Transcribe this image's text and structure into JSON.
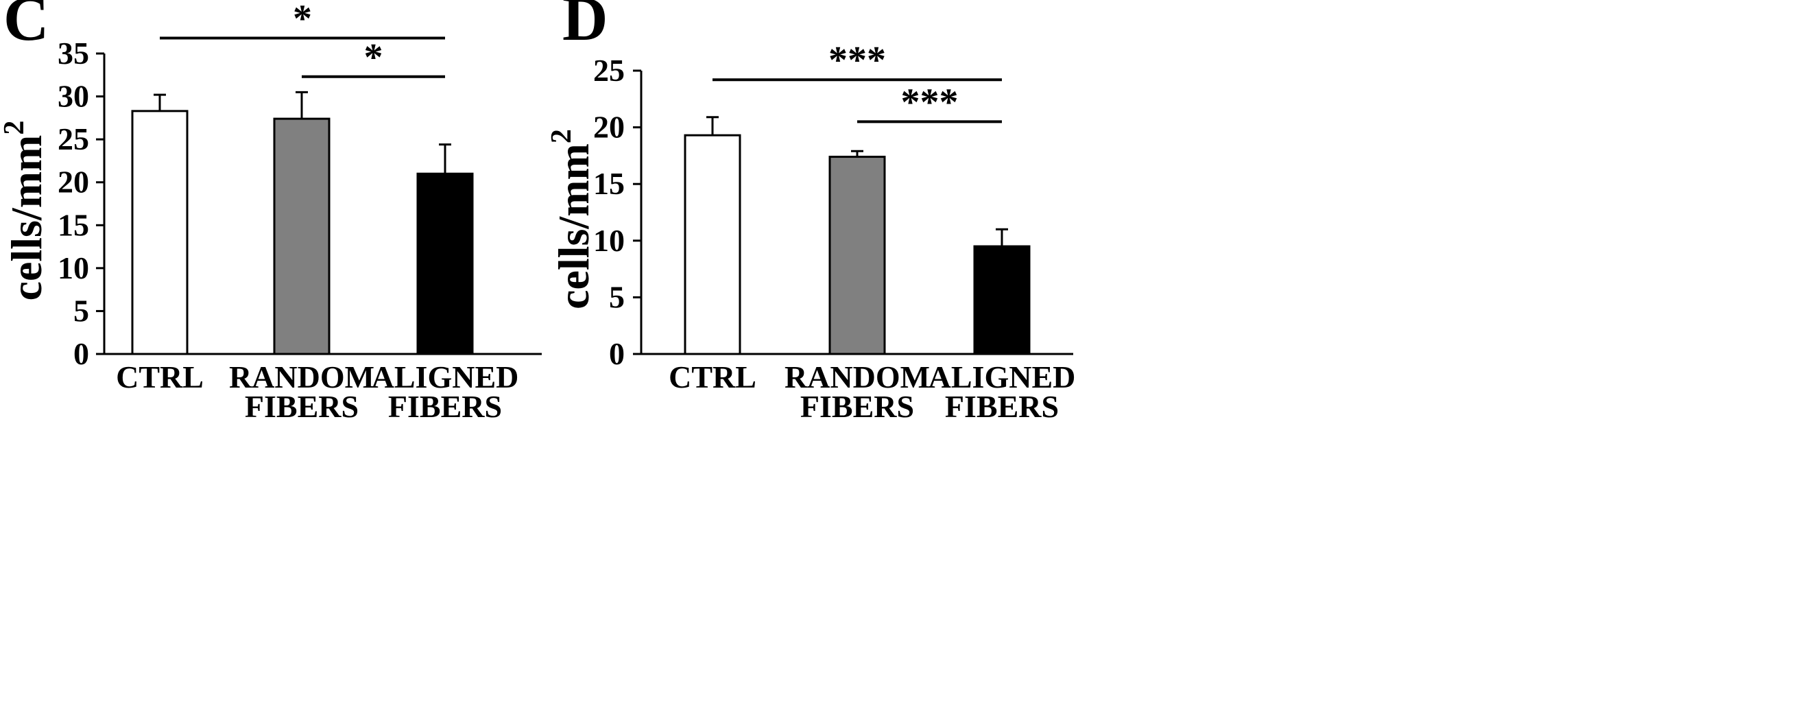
{
  "chart_data": [
    {
      "type": "bar",
      "panel_label": "C",
      "categories": [
        [
          "CTRL"
        ],
        [
          "RANDOM",
          "FIBERS"
        ],
        [
          "ALIGNED",
          "FIBERS"
        ]
      ],
      "values": [
        28.3,
        27.4,
        21.0
      ],
      "errors": [
        1.9,
        3.1,
        3.4
      ],
      "bar_colors": [
        "#ffffff",
        "#808080",
        "#000000"
      ],
      "ylabel": "cells/mm",
      "ylabel_sup": "2",
      "ylim": [
        0,
        35
      ],
      "yticks": [
        0,
        5,
        10,
        15,
        20,
        25,
        30,
        35
      ],
      "grid": false,
      "significance": [
        {
          "from": 0,
          "to": 2,
          "label": "*",
          "y": 36.8
        },
        {
          "from": 1,
          "to": 2,
          "label": "*",
          "y": 32.3
        }
      ]
    },
    {
      "type": "bar",
      "panel_label": "D",
      "categories": [
        [
          "CTRL"
        ],
        [
          "RANDOM",
          "FIBERS"
        ],
        [
          "ALIGNED",
          "FIBERS"
        ]
      ],
      "values": [
        19.3,
        17.4,
        9.5
      ],
      "errors": [
        1.6,
        0.5,
        1.5
      ],
      "bar_colors": [
        "#ffffff",
        "#808080",
        "#000000"
      ],
      "ylabel": "cells/mm",
      "ylabel_sup": "2",
      "ylim": [
        0,
        25
      ],
      "yticks": [
        0,
        5,
        10,
        15,
        20,
        25
      ],
      "grid": false,
      "significance": [
        {
          "from": 0,
          "to": 2,
          "label": "***",
          "y": 24.2
        },
        {
          "from": 1,
          "to": 2,
          "label": "***",
          "y": 20.5
        }
      ]
    }
  ]
}
